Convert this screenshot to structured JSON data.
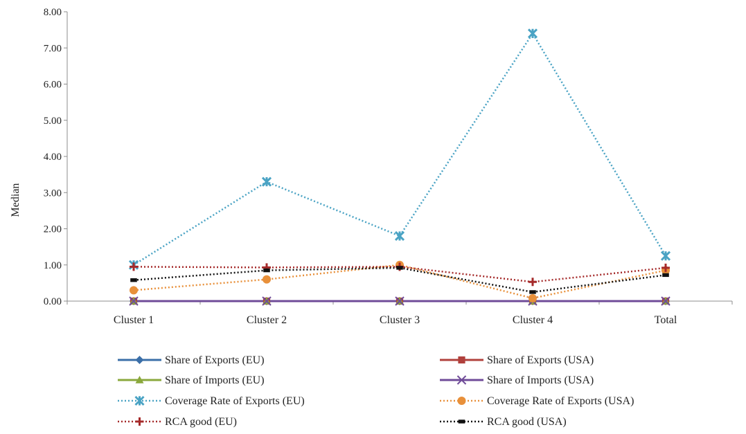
{
  "chart_data": {
    "type": "line",
    "title": "",
    "xlabel": "",
    "ylabel": "Median",
    "categories": [
      "Cluster 1",
      "Cluster 2",
      "Cluster 3",
      "Cluster 4",
      "Total"
    ],
    "ylim": [
      0,
      8
    ],
    "yticks": [
      "0.00",
      "1.00",
      "2.00",
      "3.00",
      "4.00",
      "5.00",
      "6.00",
      "7.00",
      "8.00"
    ],
    "grid": false,
    "legend_position": "bottom",
    "series": [
      {
        "name": "Share of Exports (EU)",
        "values": [
          0.0,
          0.0,
          0.0,
          0.0,
          0.0
        ],
        "color": "#3b6fa8",
        "line": "solid",
        "marker": "diamond"
      },
      {
        "name": "Share of Exports (USA)",
        "values": [
          0.0,
          0.0,
          0.0,
          0.0,
          0.0
        ],
        "color": "#b0403c",
        "line": "solid",
        "marker": "square"
      },
      {
        "name": "Share of Imports (EU)",
        "values": [
          0.0,
          0.0,
          0.0,
          0.0,
          0.0
        ],
        "color": "#8aa83c",
        "line": "solid",
        "marker": "triangle"
      },
      {
        "name": "Share of Imports (USA)",
        "values": [
          0.0,
          0.0,
          0.0,
          0.0,
          0.0
        ],
        "color": "#6f4b98",
        "line": "solid",
        "marker": "x"
      },
      {
        "name": "Coverage Rate of Exports (EU)",
        "values": [
          1.0,
          3.3,
          1.8,
          7.4,
          1.25
        ],
        "color": "#4aa3c4",
        "line": "dotted",
        "marker": "star"
      },
      {
        "name": "Coverage Rate of Exports (USA)",
        "values": [
          0.3,
          0.6,
          1.0,
          0.08,
          0.85
        ],
        "color": "#e8903a",
        "line": "dotted",
        "marker": "circle"
      },
      {
        "name": "RCA good (EU)",
        "values": [
          0.95,
          0.93,
          0.95,
          0.53,
          0.92
        ],
        "color": "#a52a2a",
        "line": "dotted",
        "marker": "plus"
      },
      {
        "name": "RCA good (USA)",
        "values": [
          0.58,
          0.85,
          0.92,
          0.25,
          0.72
        ],
        "color": "#111111",
        "line": "dotted",
        "marker": "dash"
      }
    ]
  }
}
